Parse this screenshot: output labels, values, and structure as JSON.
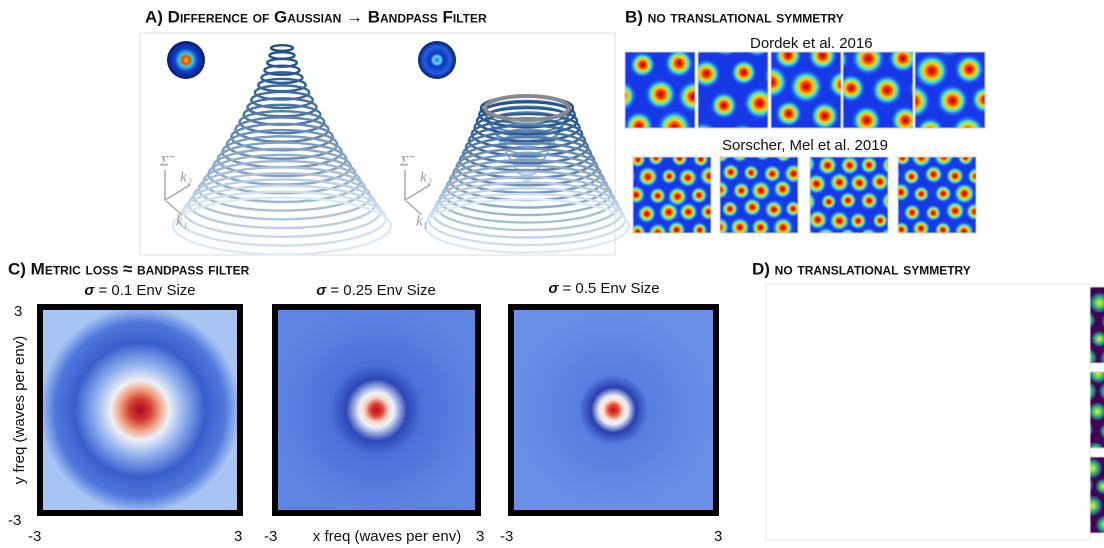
{
  "panel_a": {
    "title": "A) Difference of Gaussian → Bandpass Filter",
    "axis_labels": [
      "Σ̃",
      "k₂",
      "k₁"
    ]
  },
  "panel_b": {
    "title": "B) no translational symmetry",
    "groups": [
      "Dordek et al. 2016",
      "Sorscher, Mel et al. 2019"
    ]
  },
  "panel_c": {
    "title": "C) Metric loss ≈ bandpass filter",
    "subplots": [
      {
        "symbol": "σ",
        "label": "= 0.1 Env Size"
      },
      {
        "symbol": "σ",
        "label": "= 0.25 Env Size"
      },
      {
        "symbol": "σ",
        "label": "= 0.5 Env Size"
      }
    ],
    "y_label": "y freq (waves per env)",
    "x_label": "x freq (waves per env)",
    "y_ticks": [
      "3",
      "-3"
    ],
    "x_ticks": [
      "-3",
      "3"
    ]
  },
  "panel_d": {
    "title": "D) no translational symmetry"
  }
}
